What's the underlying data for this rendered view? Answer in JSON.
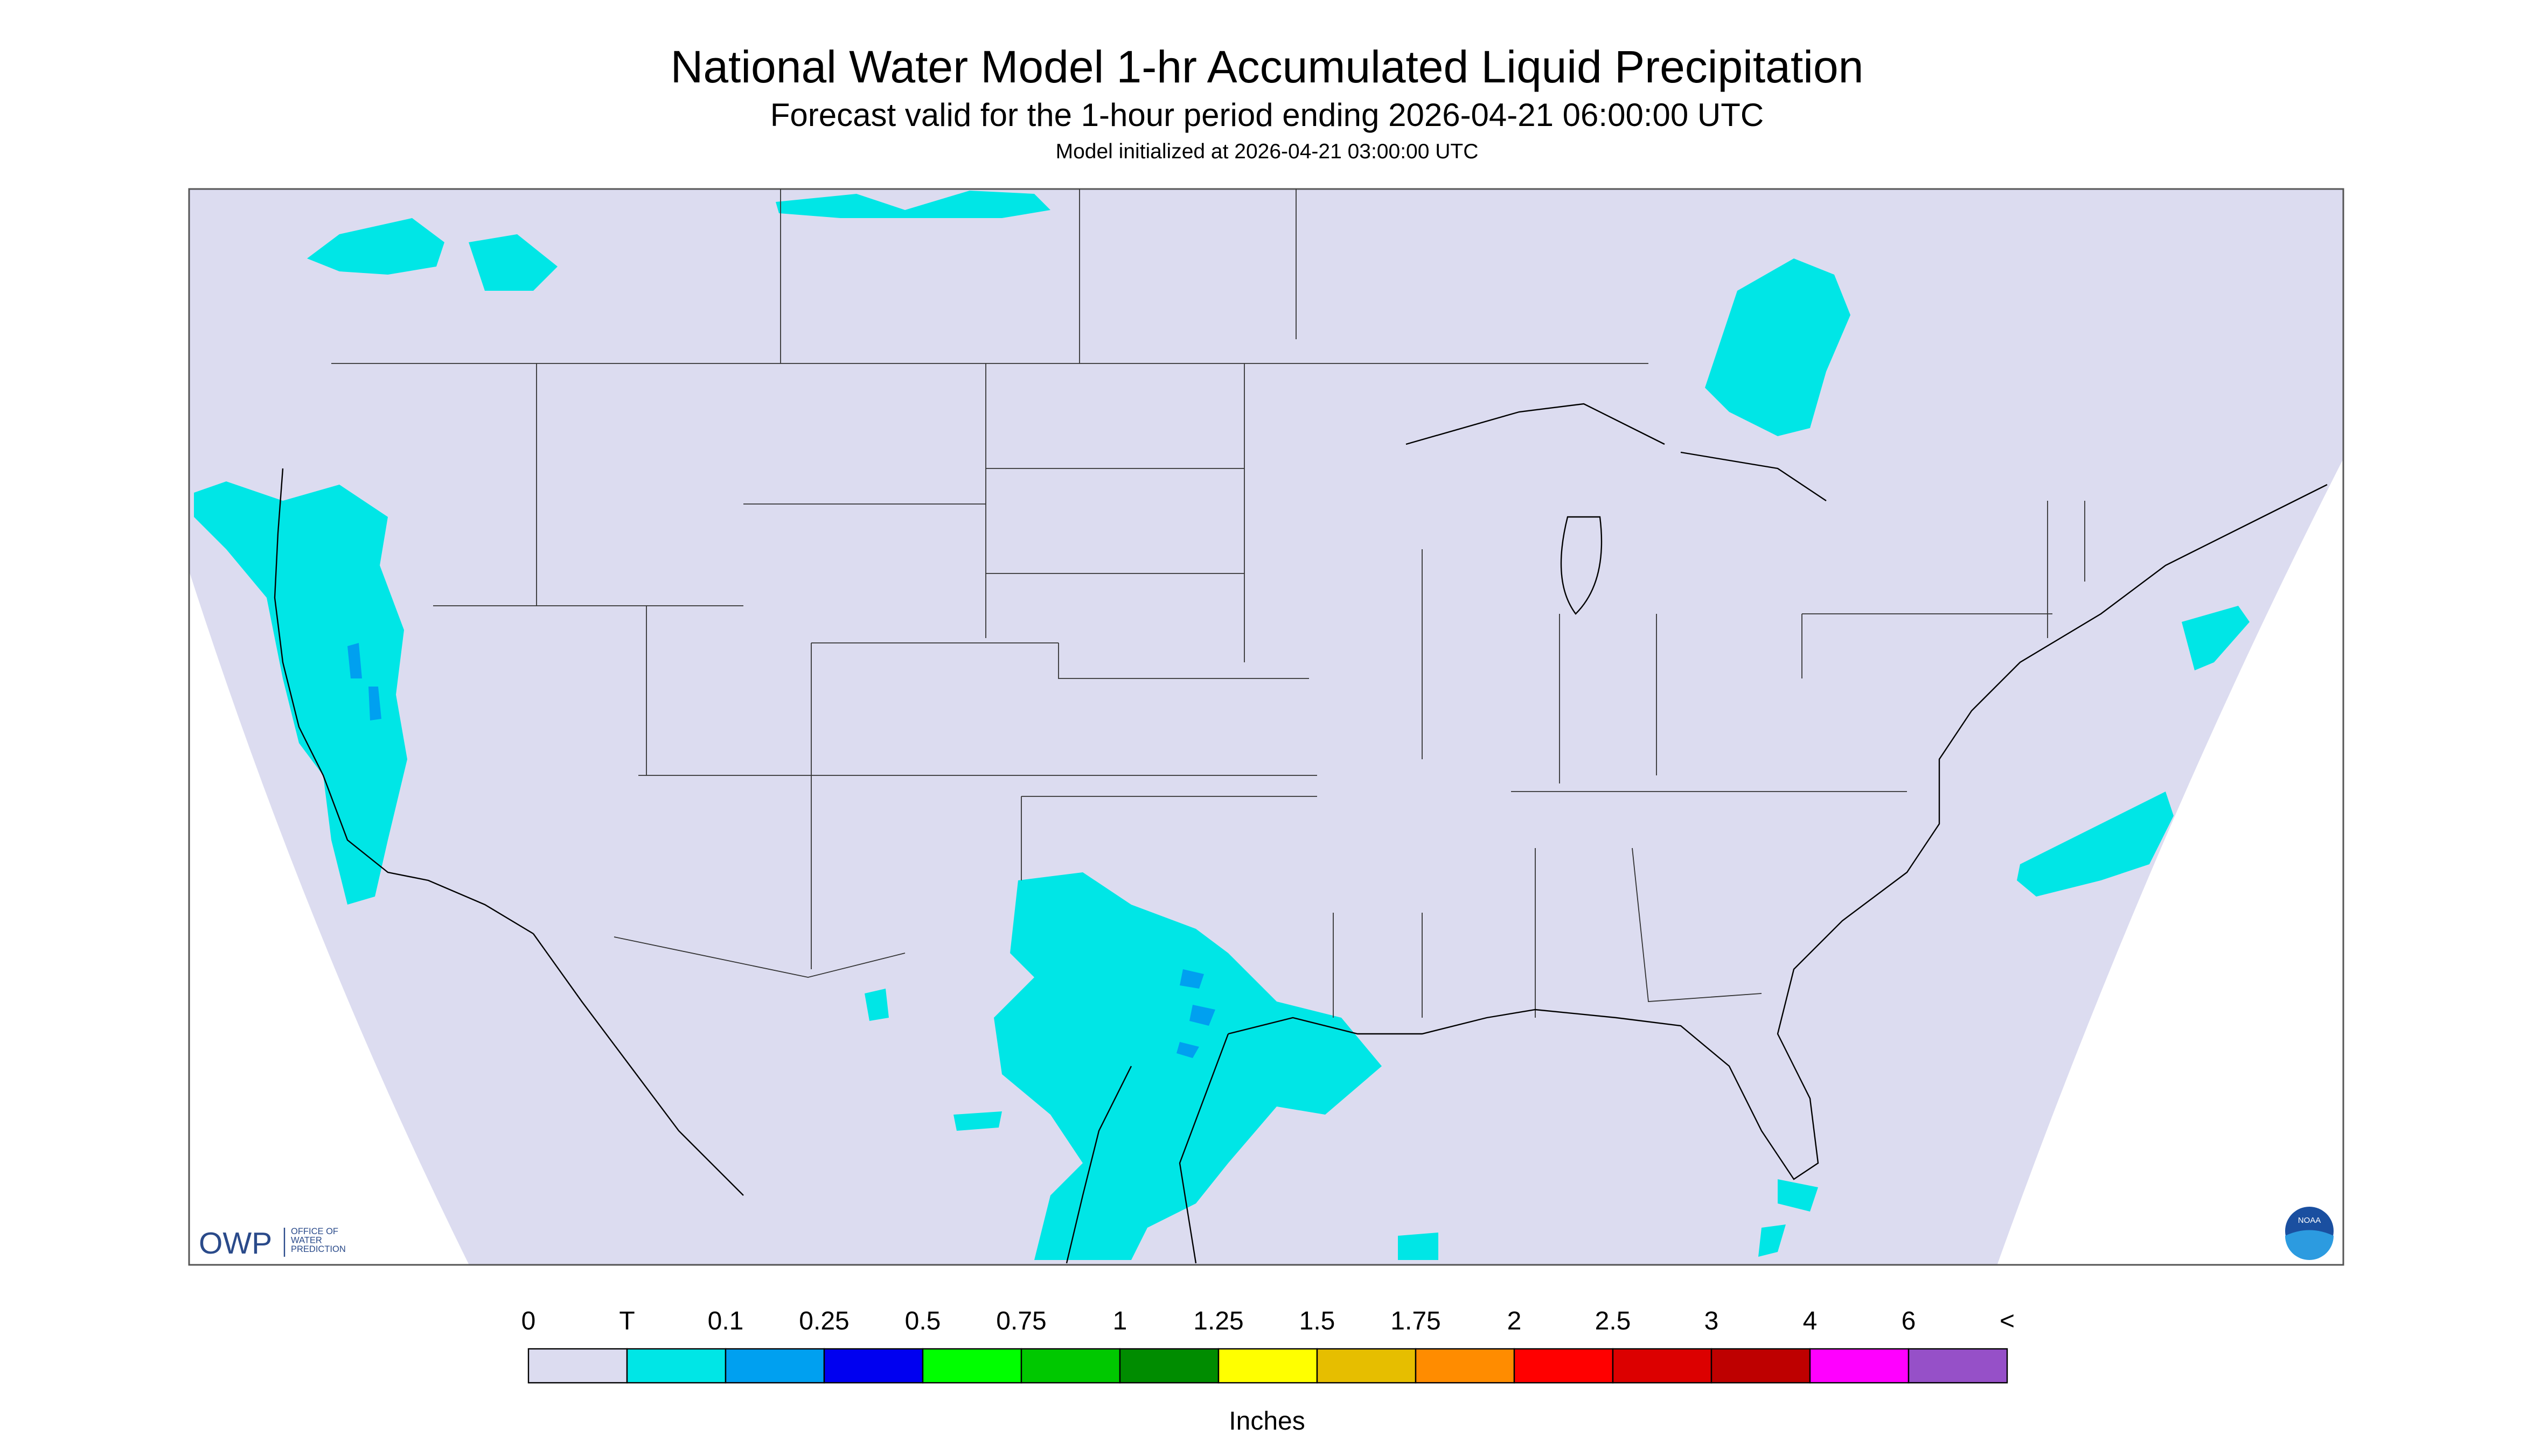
{
  "header": {
    "title": "National Water Model 1-hr Accumulated Liquid Precipitation",
    "subtitle": "Forecast valid for the 1-hour period ending 2026-04-21 06:00:00 UTC",
    "init": "Model initialized at 2026-04-21 03:00:00 UTC"
  },
  "legend": {
    "labels": [
      "0",
      "T",
      "0.1",
      "0.25",
      "0.5",
      "0.75",
      "1",
      "1.25",
      "1.5",
      "1.75",
      "2",
      "2.5",
      "3",
      "4",
      "6",
      "<"
    ],
    "colors": [
      "#dcdcf0",
      "#00e6e6",
      "#00a0f0",
      "#0000f0",
      "#00ff00",
      "#00c800",
      "#008c00",
      "#ffff00",
      "#e6be00",
      "#ff8c00",
      "#ff0000",
      "#dc0000",
      "#be0000",
      "#ff00ff",
      "#9650c8"
    ],
    "unit": "Inches"
  },
  "logo": {
    "name": "OWP",
    "lines": [
      "OFFICE OF",
      "WATER",
      "PREDICTION"
    ],
    "badge": "NOAA"
  }
}
